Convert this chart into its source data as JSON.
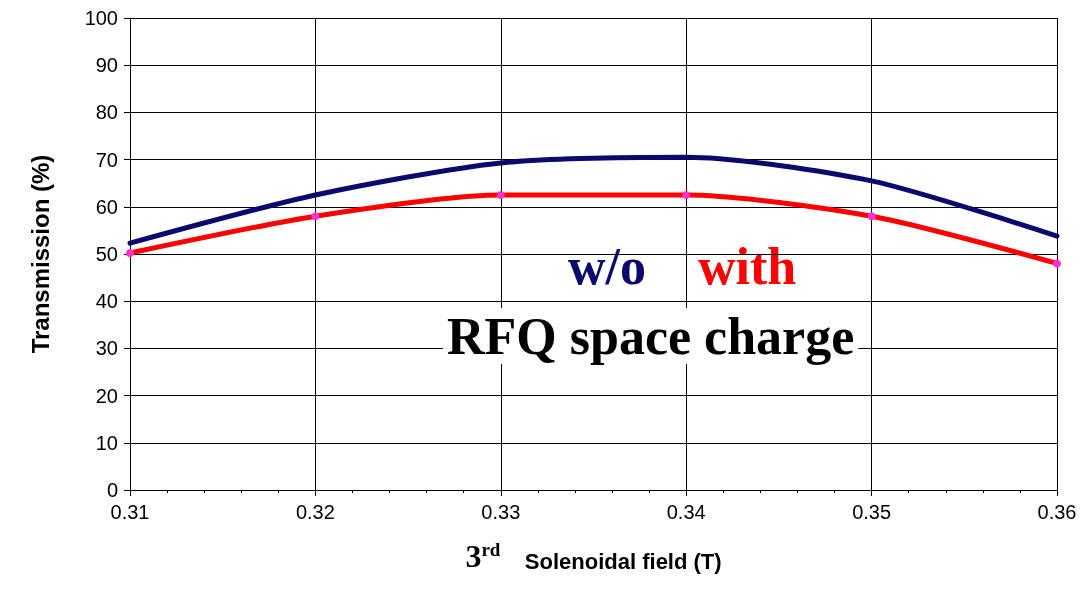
{
  "chart_data": {
    "type": "line",
    "xlabel": "3$^{rd}$ Solenoidal field (T)",
    "ylabel": "Transmission (%)",
    "x": [
      0.31,
      0.32,
      0.33,
      0.34,
      0.35,
      0.36
    ],
    "series": [
      {
        "name": "w/o",
        "color": "#0a0a6e",
        "values": [
          52.3,
          62.5,
          69.3,
          70.5,
          65.5,
          53.8
        ],
        "marker": "none"
      },
      {
        "name": "with",
        "color": "#ff0000",
        "values": [
          50.2,
          58,
          62.5,
          62.5,
          58,
          48
        ],
        "marker": "circle"
      }
    ],
    "annotations": [
      "RFQ space charge"
    ],
    "xlim": [
      0.31,
      0.36
    ],
    "xticks": [
      0.31,
      0.32,
      0.33,
      0.34,
      0.35,
      0.36
    ],
    "ylim": [
      0,
      100
    ],
    "yticks": [
      0,
      10,
      20,
      30,
      40,
      50,
      60,
      70,
      80,
      90,
      100
    ],
    "grid": true,
    "line_style": "solid"
  }
}
